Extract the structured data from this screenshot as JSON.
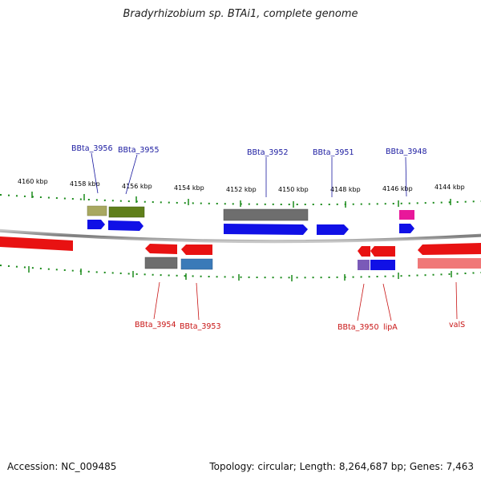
{
  "title": "Bradyrhizobium sp. BTAi1, complete genome",
  "footer": {
    "accession": "Accession: NC_009485",
    "summary": "Topology: circular; Length: 8,264,687 bp; Genes: 7,463"
  },
  "ruler_labels": [
    "4160 kbp",
    "4158 kbp",
    "4156 kbp",
    "4154 kbp",
    "4152 kbp",
    "4150 kbp",
    "4148 kbp",
    "4146 kbp",
    "4144 kbp"
  ],
  "gene_labels_top": [
    "BBta_3956",
    "BBta_3955",
    "BBta_3952",
    "BBta_3951",
    "BBta_3948"
  ],
  "gene_labels_bottom": [
    "BBta_3954",
    "BBta_3953",
    "BBta_3950",
    "lipA",
    "valS"
  ],
  "colors": {
    "label_top": "#1a1aa0",
    "label_bottom": "#c81414",
    "tick": "#1a8a1a",
    "backbone": "#888888"
  }
}
